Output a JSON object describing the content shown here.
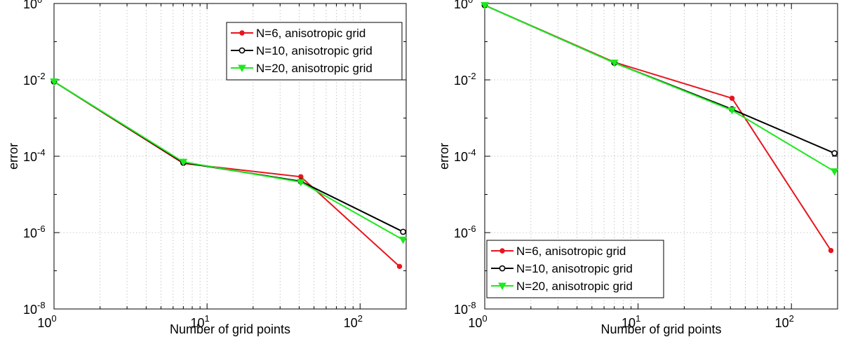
{
  "chart_data": [
    {
      "type": "line",
      "x_scale": "log",
      "y_scale": "log",
      "xlabel": "Number of grid points",
      "ylabel": "error",
      "xlim": [
        1,
        200
      ],
      "ylim": [
        1e-08,
        1
      ],
      "grid": true,
      "legend_position": "top-right",
      "x_ticks": [
        {
          "value": 1,
          "base": "10",
          "exp": "0"
        },
        {
          "value": 10,
          "base": "10",
          "exp": "1"
        },
        {
          "value": 100,
          "base": "10",
          "exp": "2"
        }
      ],
      "y_ticks": [
        {
          "value": 1,
          "base": "10",
          "exp": "0"
        },
        {
          "value": 0.01,
          "base": "10",
          "exp": "-2"
        },
        {
          "value": 0.0001,
          "base": "10",
          "exp": "-4"
        },
        {
          "value": 1e-06,
          "base": "10",
          "exp": "-6"
        },
        {
          "value": 1e-08,
          "base": "10",
          "exp": "-8"
        }
      ],
      "series": [
        {
          "name": "N=6, anisotropic grid",
          "color": "#e8141d",
          "marker": "dot",
          "x": [
            1,
            7,
            41,
            181
          ],
          "y": [
            0.009,
            6.5e-05,
            2.9e-05,
            1.3e-07
          ]
        },
        {
          "name": "N=10, anisotropic grid",
          "color": "#000000",
          "marker": "circle",
          "x": [
            1,
            7,
            41,
            191
          ],
          "y": [
            0.009,
            6.8e-05,
            2.2e-05,
            1.05e-06
          ]
        },
        {
          "name": "N=20, anisotropic grid",
          "color": "#1ee81e",
          "marker": "triangle-down",
          "x": [
            1,
            7,
            41,
            191
          ],
          "y": [
            0.009,
            7.1e-05,
            2.1e-05,
            6.5e-07
          ]
        }
      ]
    },
    {
      "type": "line",
      "x_scale": "log",
      "y_scale": "log",
      "xlabel": "Number of grid points",
      "ylabel": "error",
      "xlim": [
        1,
        200
      ],
      "ylim": [
        1e-08,
        1
      ],
      "grid": true,
      "legend_position": "bottom-left",
      "x_ticks": [
        {
          "value": 1,
          "base": "10",
          "exp": "0"
        },
        {
          "value": 10,
          "base": "10",
          "exp": "1"
        },
        {
          "value": 100,
          "base": "10",
          "exp": "2"
        }
      ],
      "y_ticks": [
        {
          "value": 1,
          "base": "10",
          "exp": "0"
        },
        {
          "value": 0.01,
          "base": "10",
          "exp": "-2"
        },
        {
          "value": 0.0001,
          "base": "10",
          "exp": "-4"
        },
        {
          "value": 1e-06,
          "base": "10",
          "exp": "-6"
        },
        {
          "value": 1e-08,
          "base": "10",
          "exp": "-8"
        }
      ],
      "series": [
        {
          "name": "N=6, anisotropic grid",
          "color": "#e8141d",
          "marker": "dot",
          "x": [
            1,
            7,
            41,
            181
          ],
          "y": [
            0.9,
            0.029,
            0.0033,
            3.4e-07
          ]
        },
        {
          "name": "N=10, anisotropic grid",
          "color": "#000000",
          "marker": "circle",
          "x": [
            1,
            7,
            41,
            191
          ],
          "y": [
            0.9,
            0.028,
            0.0017,
            0.00012
          ]
        },
        {
          "name": "N=20, anisotropic grid",
          "color": "#1ee81e",
          "marker": "triangle-down",
          "x": [
            1,
            7,
            41,
            191
          ],
          "y": [
            0.9,
            0.028,
            0.0016,
            4e-05
          ]
        }
      ]
    }
  ]
}
